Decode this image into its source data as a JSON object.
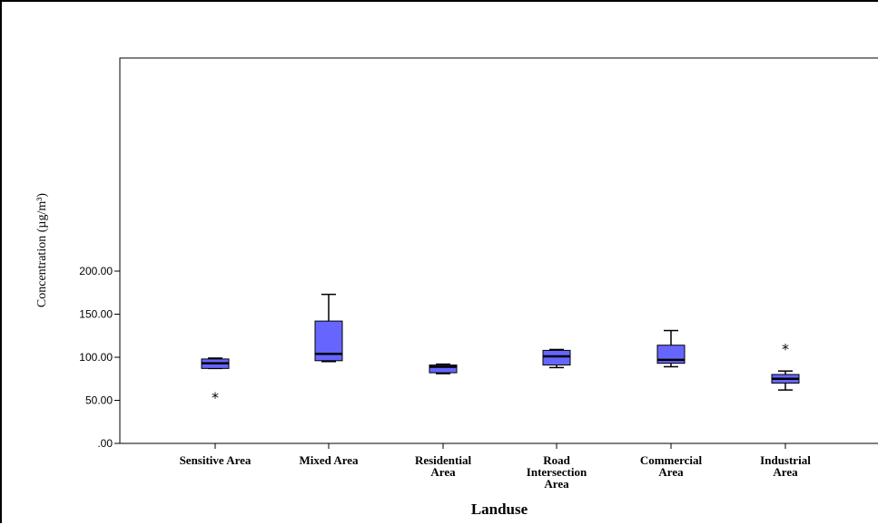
{
  "chart_data": {
    "type": "boxplot",
    "title": "",
    "xlabel": "Landuse",
    "ylabel": "Concentration (µg/m³)",
    "ylim": [
      0,
      220
    ],
    "yticks": [
      0,
      50,
      100,
      150,
      200
    ],
    "ytick_labels": [
      ".00",
      "50.00",
      "100.00",
      "150.00",
      "200.00"
    ],
    "grid": false,
    "box_color": "#6666ff",
    "categories": [
      {
        "label": [
          "Sensitive Area"
        ],
        "min": 87,
        "q1": 87,
        "median": 93,
        "q3": 98,
        "max": 99,
        "outliers": [
          57
        ]
      },
      {
        "label": [
          "Mixed Area"
        ],
        "min": 95,
        "q1": 96,
        "median": 104,
        "q3": 142,
        "max": 173,
        "outliers": []
      },
      {
        "label": [
          "Residential",
          "Area"
        ],
        "min": 81,
        "q1": 82,
        "median": 89,
        "q3": 91,
        "max": 92,
        "outliers": []
      },
      {
        "label": [
          "Road",
          "Intersection",
          "Area"
        ],
        "min": 88,
        "q1": 91,
        "median": 101,
        "q3": 108,
        "max": 109,
        "outliers": []
      },
      {
        "label": [
          "Commercial",
          "Area"
        ],
        "min": 89,
        "q1": 93,
        "median": 97,
        "q3": 114,
        "max": 131,
        "outliers": []
      },
      {
        "label": [
          "Industrial",
          "Area"
        ],
        "min": 62,
        "q1": 70,
        "median": 75,
        "q3": 80,
        "max": 84,
        "outliers": [
          113
        ]
      }
    ]
  }
}
